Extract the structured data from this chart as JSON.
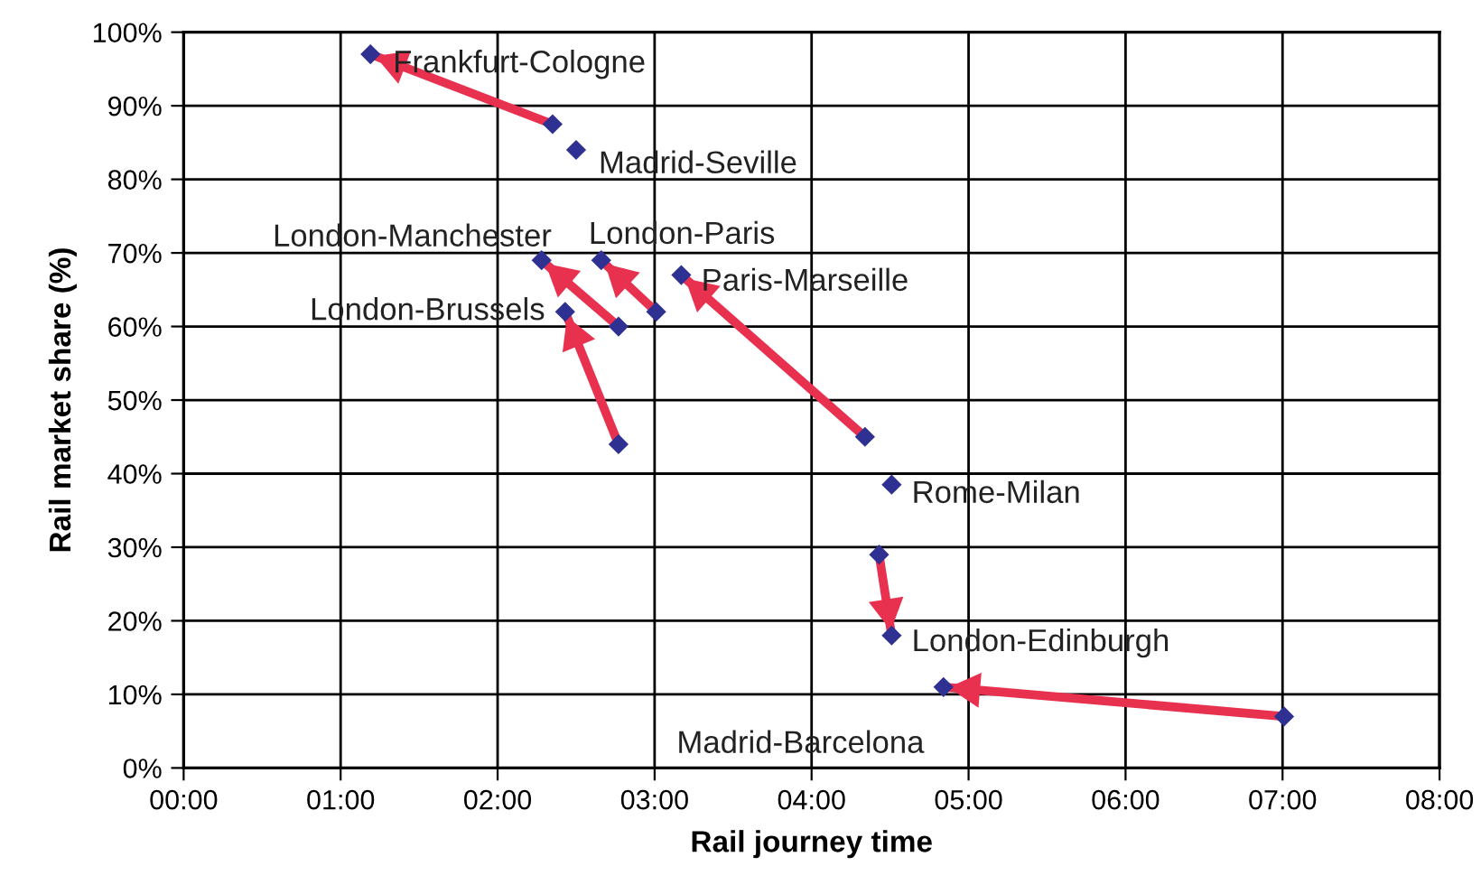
{
  "chart_data": {
    "type": "scatter",
    "xlabel": "Rail journey time",
    "ylabel": "Rail market share (%)",
    "xlim": [
      0,
      8
    ],
    "ylim": [
      0,
      100
    ],
    "xticks": [
      {
        "value": 0,
        "label": "00:00"
      },
      {
        "value": 1,
        "label": "01:00"
      },
      {
        "value": 2,
        "label": "02:00"
      },
      {
        "value": 3,
        "label": "03:00"
      },
      {
        "value": 4,
        "label": "04:00"
      },
      {
        "value": 5,
        "label": "05:00"
      },
      {
        "value": 6,
        "label": "06:00"
      },
      {
        "value": 7,
        "label": "07:00"
      },
      {
        "value": 8,
        "label": "08:00"
      }
    ],
    "yticks": [
      {
        "value": 0,
        "label": "0%"
      },
      {
        "value": 10,
        "label": "10%"
      },
      {
        "value": 20,
        "label": "20%"
      },
      {
        "value": 30,
        "label": "30%"
      },
      {
        "value": 40,
        "label": "40%"
      },
      {
        "value": 50,
        "label": "50%"
      },
      {
        "value": 60,
        "label": "60%"
      },
      {
        "value": 70,
        "label": "70%"
      },
      {
        "value": 80,
        "label": "80%"
      },
      {
        "value": 90,
        "label": "90%"
      },
      {
        "value": 100,
        "label": "100%"
      }
    ],
    "grid": true,
    "series": [
      {
        "type": "line",
        "color": "#e8304f",
        "x": [
          2.35,
          1.19
        ],
        "values": [
          87.5,
          97
        ]
      },
      {
        "type": "line",
        "color": "#e8304f",
        "x": [
          2.77,
          2.28
        ],
        "values": [
          60,
          69
        ]
      },
      {
        "type": "line",
        "color": "#e8304f",
        "x": [
          3.01,
          2.66
        ],
        "values": [
          62,
          69
        ]
      },
      {
        "type": "line",
        "color": "#e8304f",
        "x": [
          2.77,
          2.43
        ],
        "values": [
          44,
          62
        ]
      },
      {
        "type": "line",
        "color": "#e8304f",
        "x": [
          4.34,
          3.17
        ],
        "values": [
          45,
          67
        ]
      },
      {
        "type": "line",
        "color": "#e8304f",
        "x": [
          4.43,
          4.51
        ],
        "values": [
          29,
          18
        ]
      },
      {
        "type": "line",
        "color": "#e8304f",
        "x": [
          7.01,
          4.84
        ],
        "values": [
          7,
          11
        ]
      },
      {
        "color": "#2e3192",
        "marker": "diamond",
        "x": [
          1.19,
          2.35,
          2.5,
          2.28,
          2.66,
          2.43,
          2.77,
          3.01,
          3.17,
          2.77,
          4.34,
          4.51,
          4.43,
          4.51,
          4.84,
          7.01
        ],
        "values": [
          97,
          87.5,
          84,
          69,
          69,
          62,
          60,
          62,
          67,
          44,
          45,
          38.5,
          29,
          18,
          11,
          7
        ]
      }
    ],
    "annotations": [
      {
        "text": "Frankfurt-Cologne",
        "x": 1.19,
        "y": 97
      },
      {
        "text": "Madrid-Seville",
        "x": 2.5,
        "y": 84
      },
      {
        "text": "London-Manchester",
        "x": 2.28,
        "y": 69
      },
      {
        "text": "London-Paris",
        "x": 2.66,
        "y": 69
      },
      {
        "text": "London-Brussels",
        "x": 2.43,
        "y": 62
      },
      {
        "text": "Paris-Marseille",
        "x": 3.17,
        "y": 67
      },
      {
        "text": "Rome-Milan",
        "x": 4.51,
        "y": 38.5
      },
      {
        "text": "London-Edinburgh",
        "x": 4.51,
        "y": 18
      },
      {
        "text": "Madrid-Barcelona",
        "x": 4.84,
        "y": 11
      }
    ]
  }
}
